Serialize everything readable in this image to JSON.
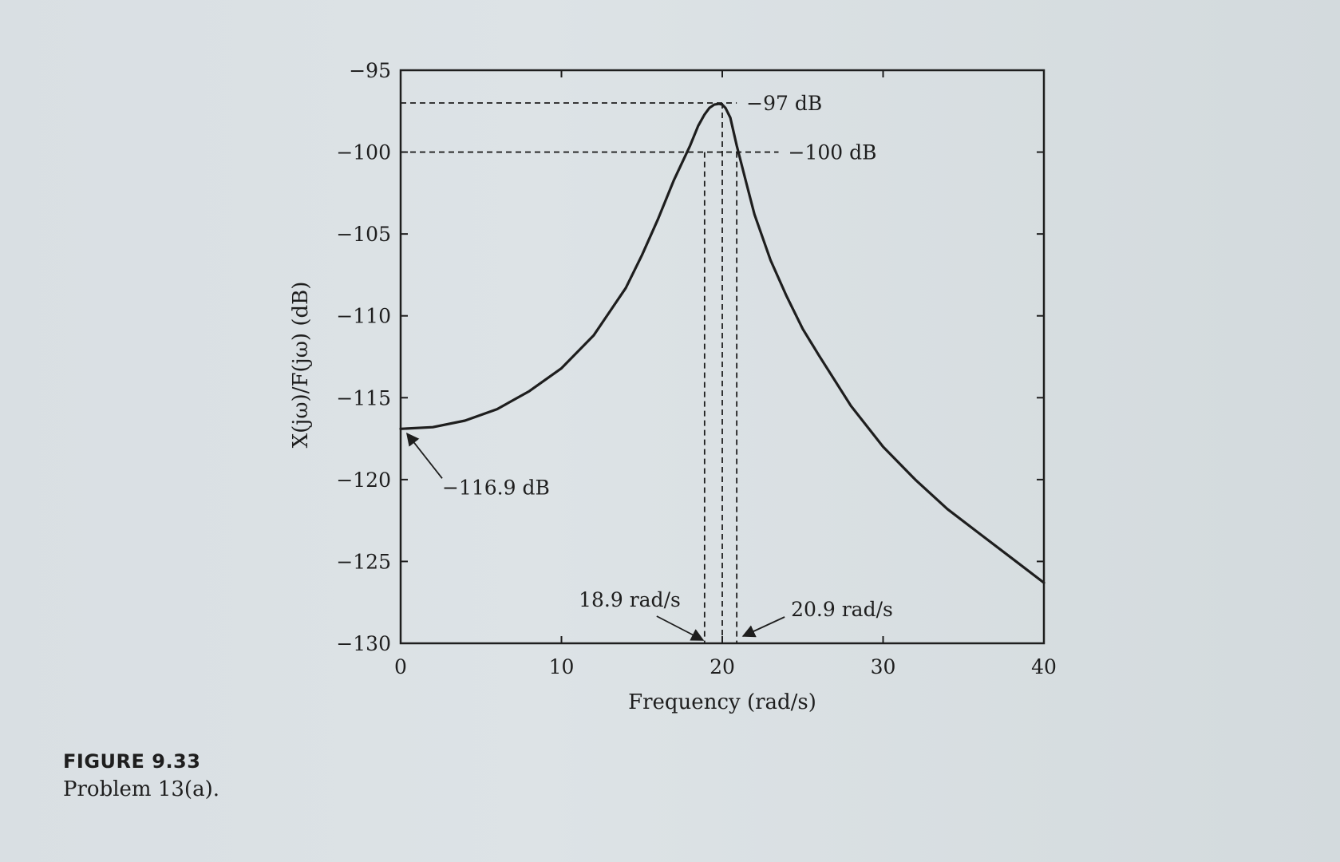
{
  "caption": {
    "figure_number": "FIGURE 9.33",
    "text": "Problem 13(a)."
  },
  "colors": {
    "background": "#dce2e5",
    "ink": "#1e1e1e"
  },
  "chart_data": {
    "type": "line",
    "title": "",
    "xlabel": "Frequency (rad/s)",
    "ylabel": "X(jω)/F(jω) (dB)",
    "xlim": [
      0,
      40
    ],
    "ylim": [
      -130,
      -95
    ],
    "xticks": [
      0,
      10,
      20,
      30,
      40
    ],
    "xtick_labels": [
      "0",
      "10",
      "20",
      "30",
      "40"
    ],
    "yticks": [
      -95,
      -100,
      -105,
      -110,
      -115,
      -120,
      -125,
      -130
    ],
    "ytick_labels": [
      "−95",
      "−100",
      "−105",
      "−110",
      "−115",
      "−120",
      "−125",
      "−130"
    ],
    "grid": false,
    "series": [
      {
        "x": [
          0,
          2,
          4,
          6,
          8,
          10,
          12,
          14,
          15,
          16,
          17,
          18,
          18.5,
          18.9,
          19.2,
          19.5,
          19.8,
          20,
          20.2,
          20.5,
          20.9,
          21.5,
          22,
          23,
          24,
          25,
          26,
          28,
          30,
          32,
          34,
          36,
          38,
          40
        ],
        "y": [
          -116.9,
          -116.8,
          -116.4,
          -115.7,
          -114.6,
          -113.2,
          -111.2,
          -108.3,
          -106.3,
          -104.1,
          -101.7,
          -99.6,
          -98.4,
          -97.7,
          -97.3,
          -97.1,
          -97.05,
          -97.1,
          -97.3,
          -97.9,
          -99.6,
          -101.9,
          -103.8,
          -106.6,
          -108.8,
          -110.8,
          -112.4,
          -115.5,
          -118.0,
          -120.0,
          -121.8,
          -123.3,
          -124.8,
          -126.3
        ]
      }
    ],
    "reference_lines": {
      "horizontal": [
        {
          "y": -97,
          "label": "−97 dB"
        },
        {
          "y": -100,
          "label": "−100 dB"
        }
      ],
      "vertical": [
        {
          "x": 18.9,
          "label": "18.9 rad/s"
        },
        {
          "x": 20
        },
        {
          "x": 20.9,
          "label": "20.9 rad/s"
        }
      ]
    },
    "annotations": [
      {
        "text": "−116.9 dB",
        "x": 0,
        "y": -116.9
      }
    ]
  }
}
